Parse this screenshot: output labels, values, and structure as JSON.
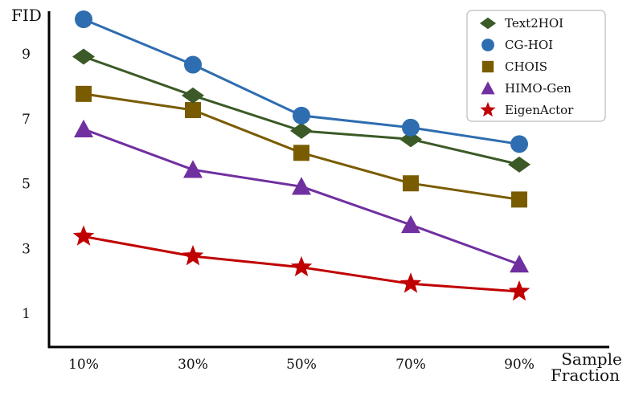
{
  "chart_data": {
    "type": "line",
    "ylabel": "FID",
    "xlabel_line1": "Sample",
    "xlabel_line2": "Fraction",
    "categories": [
      "10%",
      "30%",
      "50%",
      "70%",
      "90%"
    ],
    "yticks": [
      1,
      3,
      5,
      7,
      9
    ],
    "ylim": [
      0.1,
      10.5
    ],
    "grid": false,
    "legend_position": "top-right",
    "series": [
      {
        "name": "Text2HOI",
        "marker": "diamond",
        "color": "#3b5a27",
        "values": [
          8.92,
          7.72,
          6.63,
          6.37,
          5.59
        ]
      },
      {
        "name": "CG-HOI",
        "marker": "circle",
        "color": "#2e6db0",
        "values": [
          10.07,
          8.67,
          7.1,
          6.73,
          6.22
        ]
      },
      {
        "name": "CHOIS",
        "marker": "square",
        "color": "#7a5c00",
        "values": [
          7.77,
          7.27,
          5.95,
          5.01,
          4.51
        ]
      },
      {
        "name": "HIMO-Gen",
        "marker": "triangle",
        "color": "#7030a0",
        "values": [
          6.68,
          5.43,
          4.91,
          3.73,
          2.51
        ]
      },
      {
        "name": "EigenActor",
        "marker": "star",
        "color": "#c00000",
        "values": [
          3.37,
          2.76,
          2.42,
          1.91,
          1.67
        ]
      }
    ]
  }
}
